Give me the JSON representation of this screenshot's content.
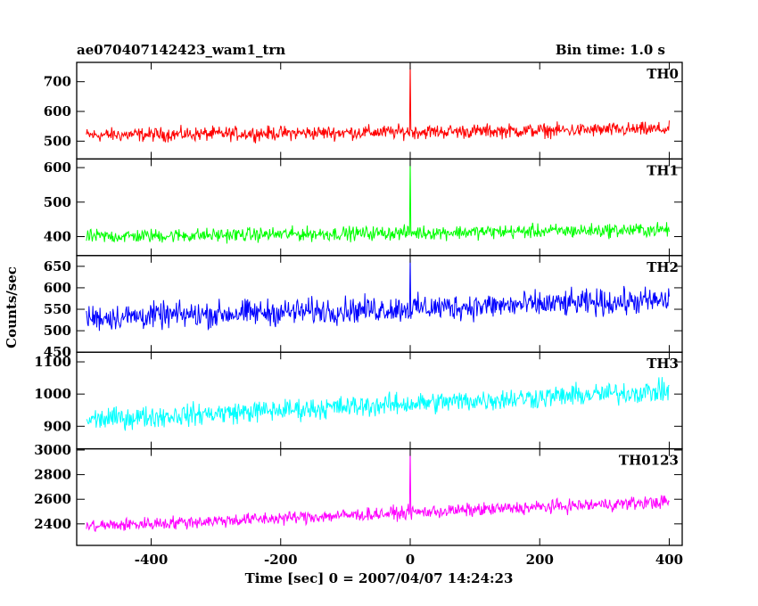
{
  "header": {
    "title": "ae070407142423_wam1_trn",
    "bin_time": "Bin time: 1.0 s"
  },
  "xaxis": {
    "label": "Time [sec] 0 = 2007/04/07 14:24:23"
  },
  "yaxis": {
    "label": "Counts/sec"
  },
  "chart_data": {
    "type": "line",
    "xlim": [
      -515,
      420
    ],
    "xticks": [
      -400,
      -200,
      0,
      200,
      400
    ],
    "x_step": 1.0,
    "x_range": [
      -500,
      400
    ],
    "panels": [
      {
        "name": "TH0",
        "color": "#ff0000",
        "ylim": [
          440,
          765
        ],
        "yticks": [
          500,
          600,
          700
        ],
        "baseline_start": 520,
        "baseline_end": 540,
        "noise_halfwidth": 35,
        "spike": {
          "x": 0,
          "y": 765
        }
      },
      {
        "name": "TH1",
        "color": "#00ff00",
        "ylim": [
          345,
          625
        ],
        "yticks": [
          400,
          500,
          600
        ],
        "baseline_start": 400,
        "baseline_end": 420,
        "noise_halfwidth": 30,
        "spike": {
          "x": 0,
          "y": 625
        }
      },
      {
        "name": "TH2",
        "color": "#0000ff",
        "ylim": [
          450,
          675
        ],
        "yticks": [
          450,
          500,
          550,
          600,
          650
        ],
        "baseline_start": 530,
        "baseline_end": 570,
        "noise_halfwidth": 45,
        "spike": {
          "x": 0,
          "y": 675
        }
      },
      {
        "name": "TH3",
        "color": "#00ffff",
        "ylim": [
          830,
          1130
        ],
        "yticks": [
          900,
          1000,
          1100
        ],
        "baseline_start": 920,
        "baseline_end": 1010,
        "noise_halfwidth": 50,
        "spike": null
      },
      {
        "name": "TH0123",
        "color": "#ff00ff",
        "ylim": [
          2225,
          3010
        ],
        "yticks": [
          2400,
          2600,
          2800,
          3000
        ],
        "baseline_start": 2380,
        "baseline_end": 2580,
        "noise_halfwidth": 80,
        "spike": {
          "x": 0,
          "y": 3010
        }
      }
    ]
  }
}
